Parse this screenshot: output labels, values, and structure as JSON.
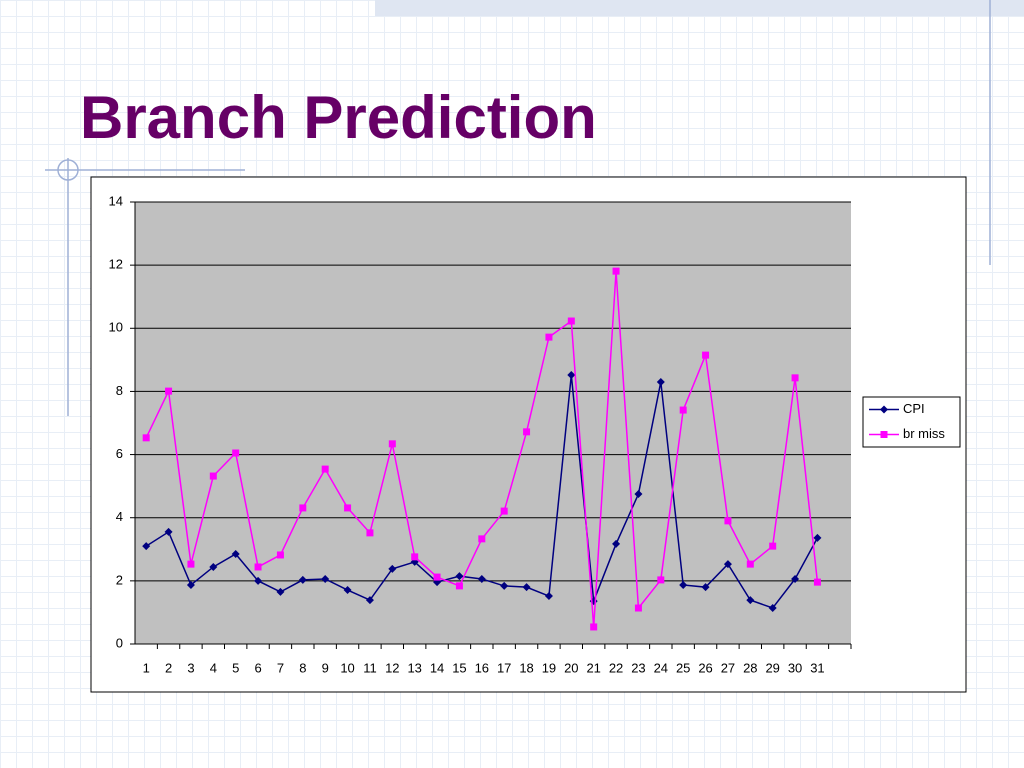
{
  "slide": {
    "title": "Branch Prediction"
  },
  "chart_data": {
    "type": "line",
    "categories": [
      "1",
      "2",
      "3",
      "4",
      "5",
      "6",
      "7",
      "8",
      "9",
      "10",
      "11",
      "12",
      "13",
      "14",
      "15",
      "16",
      "17",
      "18",
      "19",
      "20",
      "21",
      "22",
      "23",
      "24",
      "25",
      "26",
      "27",
      "28",
      "29",
      "30",
      "31",
      null
    ],
    "series": [
      {
        "name": "CPI",
        "color": "#000080",
        "marker": "diamond",
        "values": [
          3.1,
          3.55,
          1.87,
          2.44,
          2.85,
          2.0,
          1.65,
          2.03,
          2.06,
          1.71,
          1.39,
          2.38,
          2.6,
          1.96,
          2.15,
          2.06,
          1.84,
          1.8,
          1.52,
          8.52,
          1.36,
          3.17,
          4.75,
          8.3,
          1.87,
          1.8,
          2.53,
          1.39,
          1.14,
          2.06,
          3.36,
          null
        ]
      },
      {
        "name": "br miss",
        "color": "#ff00ff",
        "marker": "square",
        "values": [
          6.53,
          8.01,
          2.53,
          5.32,
          6.05,
          2.44,
          2.82,
          4.31,
          5.54,
          4.31,
          3.52,
          6.34,
          2.76,
          2.12,
          1.84,
          3.33,
          4.21,
          6.72,
          9.72,
          10.23,
          0.54,
          11.81,
          1.14,
          2.03,
          7.41,
          9.15,
          3.9,
          2.53,
          3.1,
          8.43,
          1.96,
          null
        ]
      }
    ],
    "ylim": [
      0,
      14
    ],
    "yticks": [
      0,
      2,
      4,
      6,
      8,
      10,
      12,
      14
    ],
    "grid": true,
    "plot_background": "#c0c0c0",
    "legend": "right"
  }
}
